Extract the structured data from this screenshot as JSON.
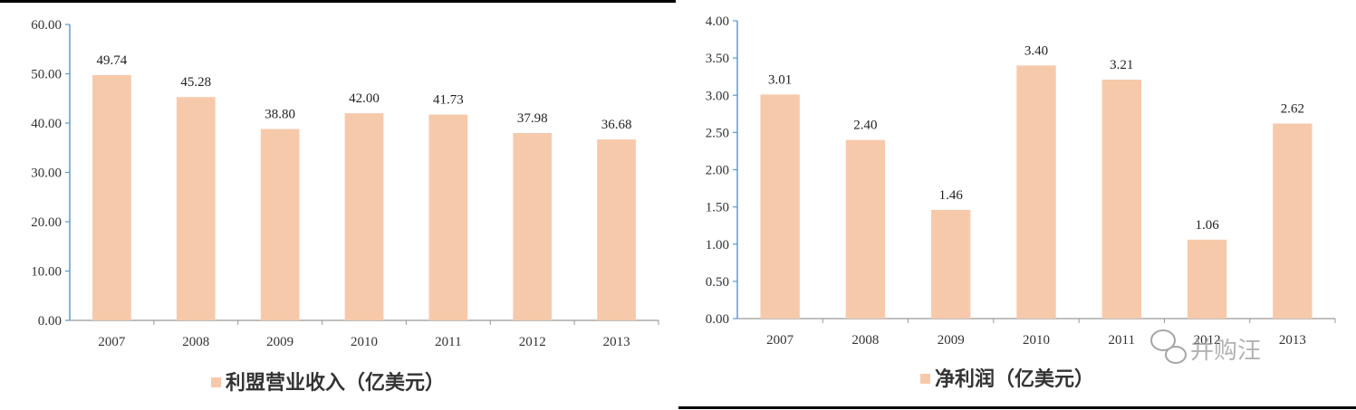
{
  "chart_data": [
    {
      "type": "bar",
      "categories": [
        "2007",
        "2008",
        "2009",
        "2010",
        "2011",
        "2012",
        "2013"
      ],
      "series": [
        {
          "name": "利盟营业收入（亿美元）",
          "values": [
            49.74,
            45.28,
            38.8,
            42.0,
            41.73,
            37.98,
            36.68
          ]
        }
      ],
      "data_labels": [
        "49.74",
        "45.28",
        "38.80",
        "42.00",
        "41.73",
        "37.98",
        "36.68"
      ],
      "ylim": [
        0,
        60
      ],
      "yticks": [
        "0.00",
        "10.00",
        "20.00",
        "30.00",
        "40.00",
        "50.00",
        "60.00"
      ],
      "grid": false,
      "legend_position": "bottom",
      "bar_color": "#f7c9ab"
    },
    {
      "type": "bar",
      "categories": [
        "2007",
        "2008",
        "2009",
        "2010",
        "2011",
        "2012",
        "2013"
      ],
      "series": [
        {
          "name": "净利润（亿美元）",
          "values": [
            3.01,
            2.4,
            1.46,
            3.4,
            3.21,
            1.06,
            2.62
          ]
        }
      ],
      "data_labels": [
        "3.01",
        "2.40",
        "1.46",
        "3.40",
        "3.21",
        "1.06",
        "2.62"
      ],
      "ylim": [
        0,
        4
      ],
      "yticks": [
        "0.00",
        "0.50",
        "1.00",
        "1.50",
        "2.00",
        "2.50",
        "3.00",
        "3.50",
        "4.00"
      ],
      "grid": false,
      "legend_position": "bottom",
      "bar_color": "#f7c9ab"
    }
  ],
  "watermark": {
    "text": "并购汪",
    "icon": "wechat-icon"
  },
  "colors": {
    "axis": "#5b9bd5",
    "frame": "#000000"
  }
}
